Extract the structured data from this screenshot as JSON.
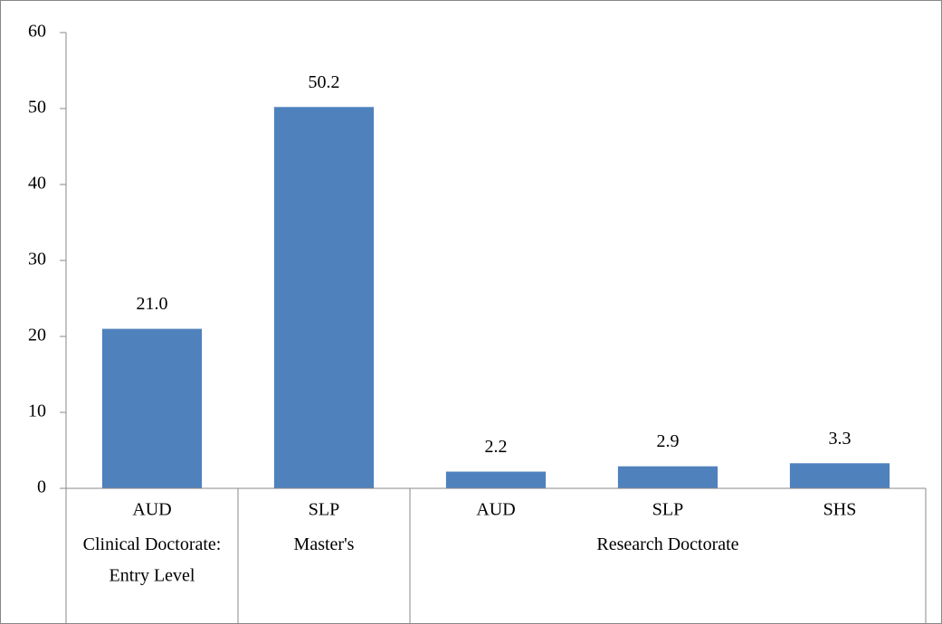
{
  "chart_data": {
    "type": "bar",
    "categories": [
      "AUD",
      "SLP",
      "AUD",
      "SLP",
      "SHS"
    ],
    "values": [
      21.0,
      50.2,
      2.2,
      2.9,
      3.3
    ],
    "value_labels": [
      "21.0",
      "50.2",
      "2.2",
      "2.9",
      "3.3"
    ],
    "groups": [
      {
        "label": "Clinical Doctorate: Entry Level",
        "count": 1
      },
      {
        "label": "Master's",
        "count": 1
      },
      {
        "label": "Research Doctorate",
        "count": 3
      }
    ],
    "color": "#4f81bd",
    "ylim": [
      0,
      60
    ],
    "yticks": [
      0,
      10,
      20,
      30,
      40,
      50,
      60
    ],
    "grid": false
  }
}
